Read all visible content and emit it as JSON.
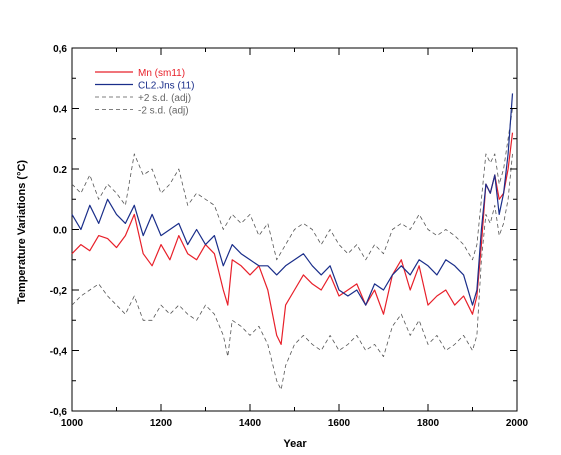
{
  "chart_data": {
    "type": "line",
    "title": "",
    "xlabel": "Year",
    "ylabel": "Temperature Variations (°C)",
    "xlim": [
      1000,
      2000
    ],
    "ylim": [
      -0.6,
      0.6
    ],
    "x_ticks": [
      1000,
      1200,
      1400,
      1600,
      1800,
      2000
    ],
    "x_tick_labels": [
      "1000",
      "1200",
      "1400",
      "1600",
      "1800",
      "2000"
    ],
    "y_ticks": [
      -0.6,
      -0.4,
      -0.2,
      0.0,
      0.2,
      0.4,
      0.6
    ],
    "y_tick_labels": [
      "-0,6",
      "-0,4",
      "-0,2",
      "0.0",
      "0.2",
      "0.4",
      "0,6"
    ],
    "grid": false,
    "legend_position": "top-left",
    "series": [
      {
        "name": "Mn (sm11)",
        "color": "#e8202a",
        "dash": "solid",
        "x": [
          1000,
          1020,
          1040,
          1060,
          1080,
          1100,
          1120,
          1140,
          1160,
          1180,
          1200,
          1220,
          1240,
          1260,
          1280,
          1300,
          1320,
          1340,
          1350,
          1360,
          1380,
          1400,
          1420,
          1440,
          1460,
          1470,
          1480,
          1500,
          1520,
          1540,
          1560,
          1580,
          1600,
          1620,
          1640,
          1660,
          1680,
          1700,
          1720,
          1740,
          1760,
          1780,
          1800,
          1820,
          1840,
          1860,
          1880,
          1900,
          1910,
          1920,
          1930,
          1940,
          1950,
          1960,
          1970,
          1980,
          1990
        ],
        "values": [
          -0.08,
          -0.05,
          -0.07,
          -0.02,
          -0.03,
          -0.06,
          -0.02,
          0.05,
          -0.08,
          -0.12,
          -0.05,
          -0.1,
          -0.02,
          -0.08,
          -0.1,
          -0.05,
          -0.08,
          -0.2,
          -0.25,
          -0.1,
          -0.12,
          -0.15,
          -0.12,
          -0.2,
          -0.35,
          -0.38,
          -0.25,
          -0.2,
          -0.15,
          -0.18,
          -0.2,
          -0.15,
          -0.22,
          -0.2,
          -0.18,
          -0.25,
          -0.2,
          -0.28,
          -0.15,
          -0.1,
          -0.2,
          -0.12,
          -0.25,
          -0.22,
          -0.2,
          -0.25,
          -0.22,
          -0.28,
          -0.22,
          -0.05,
          0.15,
          0.12,
          0.18,
          0.1,
          0.12,
          0.2,
          0.32
        ]
      },
      {
        "name": "CL2.Jns (11)",
        "color": "#1a2e8a",
        "dash": "solid",
        "x": [
          1000,
          1020,
          1040,
          1060,
          1080,
          1100,
          1120,
          1140,
          1160,
          1180,
          1200,
          1220,
          1240,
          1260,
          1280,
          1300,
          1320,
          1340,
          1360,
          1380,
          1400,
          1420,
          1440,
          1460,
          1480,
          1500,
          1520,
          1540,
          1560,
          1580,
          1600,
          1620,
          1640,
          1660,
          1680,
          1700,
          1720,
          1740,
          1760,
          1780,
          1800,
          1820,
          1840,
          1860,
          1880,
          1900,
          1910,
          1920,
          1930,
          1940,
          1950,
          1960,
          1970,
          1980,
          1990
        ],
        "values": [
          0.05,
          0.0,
          0.08,
          0.02,
          0.1,
          0.05,
          0.02,
          0.08,
          -0.02,
          0.05,
          -0.02,
          0.0,
          0.02,
          -0.05,
          0.0,
          -0.05,
          -0.02,
          -0.12,
          -0.05,
          -0.08,
          -0.1,
          -0.12,
          -0.12,
          -0.15,
          -0.12,
          -0.1,
          -0.08,
          -0.12,
          -0.15,
          -0.12,
          -0.2,
          -0.22,
          -0.2,
          -0.25,
          -0.18,
          -0.2,
          -0.15,
          -0.12,
          -0.15,
          -0.1,
          -0.12,
          -0.15,
          -0.1,
          -0.12,
          -0.15,
          -0.25,
          -0.2,
          0.0,
          0.15,
          0.12,
          0.18,
          0.05,
          0.12,
          0.25,
          0.45
        ]
      },
      {
        "name": "+2 s.d. (adj)",
        "color": "#555555",
        "dash": "dashed",
        "x": [
          1000,
          1020,
          1040,
          1060,
          1080,
          1100,
          1120,
          1140,
          1160,
          1180,
          1200,
          1220,
          1240,
          1260,
          1280,
          1300,
          1320,
          1340,
          1360,
          1380,
          1400,
          1420,
          1440,
          1460,
          1480,
          1500,
          1520,
          1540,
          1560,
          1580,
          1600,
          1620,
          1640,
          1660,
          1680,
          1700,
          1720,
          1740,
          1760,
          1780,
          1800,
          1820,
          1840,
          1860,
          1880,
          1900,
          1910,
          1920,
          1930,
          1940,
          1950,
          1960,
          1970,
          1980,
          1990
        ],
        "values": [
          0.15,
          0.12,
          0.18,
          0.1,
          0.15,
          0.12,
          0.08,
          0.25,
          0.18,
          0.2,
          0.12,
          0.15,
          0.2,
          0.08,
          0.12,
          0.1,
          0.08,
          0.0,
          0.05,
          0.02,
          0.05,
          -0.02,
          0.02,
          -0.1,
          -0.05,
          0.0,
          0.02,
          0.0,
          -0.05,
          0.0,
          -0.05,
          -0.08,
          -0.05,
          -0.1,
          -0.05,
          -0.08,
          0.0,
          0.02,
          0.0,
          0.05,
          0.0,
          -0.02,
          0.0,
          -0.02,
          -0.05,
          -0.1,
          -0.05,
          0.1,
          0.25,
          0.22,
          0.25,
          0.15,
          0.2,
          0.3,
          0.4
        ]
      },
      {
        "name": "-2 s.d. (adj)",
        "color": "#555555",
        "dash": "dashed",
        "x": [
          1000,
          1020,
          1040,
          1060,
          1080,
          1100,
          1120,
          1140,
          1160,
          1180,
          1200,
          1220,
          1240,
          1260,
          1280,
          1300,
          1320,
          1340,
          1350,
          1360,
          1380,
          1400,
          1420,
          1440,
          1460,
          1470,
          1480,
          1500,
          1520,
          1540,
          1560,
          1580,
          1600,
          1620,
          1640,
          1660,
          1680,
          1700,
          1720,
          1740,
          1760,
          1780,
          1800,
          1820,
          1840,
          1860,
          1880,
          1900,
          1910,
          1920,
          1930,
          1940,
          1950,
          1960,
          1970,
          1980,
          1990
        ],
        "values": [
          -0.25,
          -0.22,
          -0.2,
          -0.18,
          -0.22,
          -0.25,
          -0.28,
          -0.22,
          -0.3,
          -0.3,
          -0.25,
          -0.28,
          -0.25,
          -0.28,
          -0.3,
          -0.25,
          -0.28,
          -0.35,
          -0.42,
          -0.3,
          -0.32,
          -0.35,
          -0.32,
          -0.38,
          -0.5,
          -0.53,
          -0.45,
          -0.38,
          -0.35,
          -0.38,
          -0.4,
          -0.35,
          -0.4,
          -0.38,
          -0.35,
          -0.4,
          -0.38,
          -0.42,
          -0.32,
          -0.28,
          -0.35,
          -0.3,
          -0.38,
          -0.35,
          -0.4,
          -0.38,
          -0.35,
          -0.4,
          -0.35,
          -0.1,
          0.05,
          0.02,
          0.08,
          -0.02,
          0.02,
          0.1,
          0.25
        ]
      }
    ]
  }
}
